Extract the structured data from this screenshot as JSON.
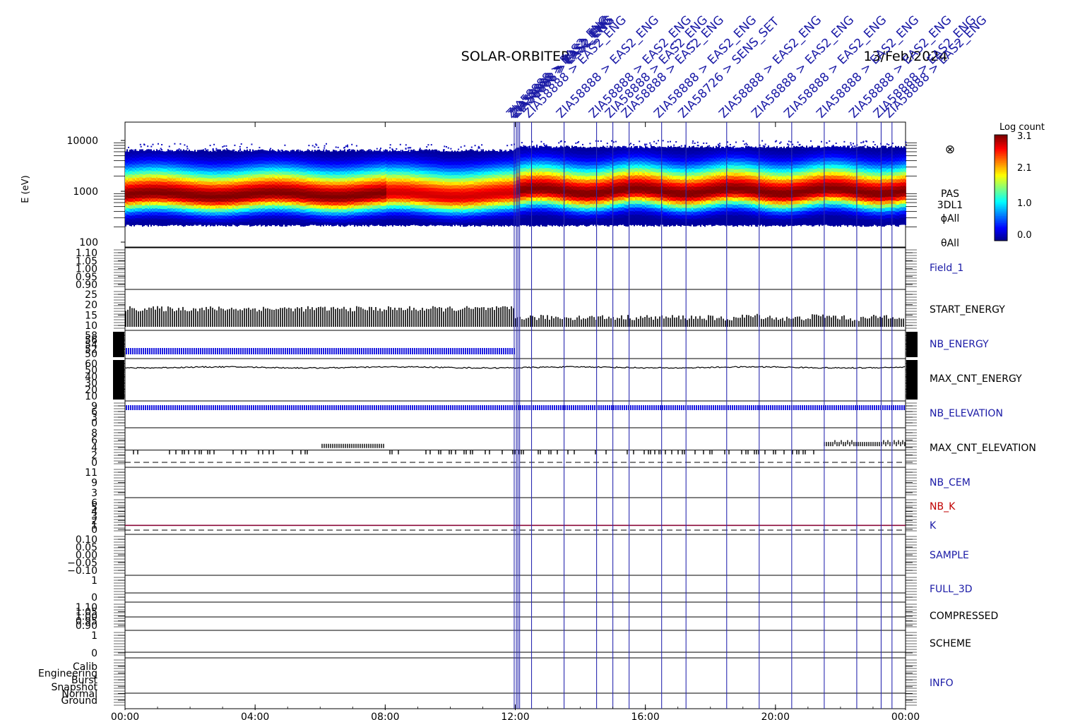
{
  "title": "SOLAR-ORBITER",
  "date": "13/Feb/2024",
  "spectrogram": {
    "ylabel": "E (eV)",
    "yticks": [
      "10000",
      "1000",
      "100"
    ],
    "colorbar": {
      "title": "Log count",
      "ticks": [
        "3.1",
        "2.1",
        "1.0",
        "0.0"
      ],
      "min": 0.0,
      "max": 3.1
    },
    "side_labels": [
      "PAS",
      "3DL1",
      "ϕAll",
      "θAll"
    ],
    "symbol": "⊗"
  },
  "colors": {
    "axis": "#000000",
    "marker": "#2a2ab0",
    "label_blue": "#1a1aa6",
    "label_red": "#c00000",
    "trace_blue": "#1c1ce0"
  },
  "chart_data": {
    "type": "multi-panel time series",
    "x_range": [
      "00:00",
      "24:00"
    ],
    "x_ticks": [
      "00:00",
      "04:00",
      "08:00",
      "12:00",
      "16:00",
      "20:00",
      "00:00"
    ],
    "panels": [
      {
        "name": "Field_1",
        "color": "blue",
        "ticks": [
          "1.10",
          "1.05",
          "1.00",
          "0.95",
          "0.90"
        ],
        "ylim": [
          0.9,
          1.1
        ]
      },
      {
        "name": "START_ENERGY",
        "color": "black",
        "ticks": [
          "25",
          "20",
          "15",
          "10"
        ],
        "ylim": [
          10,
          25
        ],
        "values_before_1200": 18,
        "values_after_1200": 14
      },
      {
        "name": "NB_ENERGY",
        "color": "blue",
        "ticks": [
          "58",
          "56",
          "54",
          "52",
          "50"
        ],
        "ylim": [
          50,
          58
        ]
      },
      {
        "name": "MAX_CNT_ENERGY",
        "color": "black",
        "ticks": [
          "60",
          "50",
          "40",
          "30",
          "20",
          "10"
        ],
        "ylim": [
          10,
          60
        ],
        "typical": 54
      },
      {
        "name": "NB_ELEVATION",
        "color": "blue",
        "ticks": [
          "9",
          "6",
          "3",
          "0"
        ],
        "ylim": [
          0,
          9
        ],
        "typical": 9
      },
      {
        "name": "MAX_CNT_ELEVATION",
        "color": "black",
        "ticks": [
          "8",
          "6",
          "4",
          "2",
          "0"
        ],
        "ylim": [
          0,
          8
        ]
      },
      {
        "name": "NB_CEM",
        "color": "blue",
        "ticks": [
          "11",
          "9",
          "3"
        ],
        "ylim": [
          3,
          11
        ]
      },
      {
        "name": "NB_K",
        "color": "red",
        "second_label": "K",
        "ticks": [
          "6",
          "5",
          "4",
          "3",
          "2",
          "1",
          "0"
        ],
        "ylim": [
          0,
          6
        ],
        "typical": 1
      },
      {
        "name": "SAMPLE",
        "color": "blue",
        "ticks": [
          "0.10",
          "0.05",
          "0.00",
          "−0.05",
          "−0.10"
        ],
        "ylim": [
          -0.1,
          0.1
        ]
      },
      {
        "name": "FULL_3D",
        "color": "blue",
        "ticks": [
          "1",
          "0"
        ],
        "ylim": [
          0,
          1
        ]
      },
      {
        "name": "COMPRESSED",
        "color": "black",
        "ticks": [
          "1.10",
          "1.05",
          "1.00",
          "0.95",
          "0.90"
        ],
        "ylim": [
          0.9,
          1.1
        ]
      },
      {
        "name": "SCHEME",
        "color": "black",
        "ticks": [
          "1",
          "0"
        ],
        "ylim": [
          0,
          1
        ]
      },
      {
        "name": "INFO",
        "color": "blue",
        "ticks": [
          "Calib",
          "Engineering",
          "Burst",
          "Snapshot",
          "Normal",
          "Ground"
        ]
      }
    ],
    "event_markers": [
      {
        "time": "11:58",
        "label": "ZIA58888 > EAS2_ENG"
      },
      {
        "time": "12:02",
        "label": "ZIA58888 > EAS2_ENG"
      },
      {
        "time": "12:05",
        "label": "ZIA58888 > EAS2_ENG"
      },
      {
        "time": "12:08",
        "label": "ZIA58888 > EAS2_ENG"
      },
      {
        "time": "12:30",
        "label": "ZIA58888 > EAS2_ENG"
      },
      {
        "time": "13:30",
        "label": "ZIA58888 > EAS2_ENG"
      },
      {
        "time": "14:30",
        "label": "ZIA58888 > EAS2_ENG"
      },
      {
        "time": "15:00",
        "label": "ZIA58888 > EAS2_ENG"
      },
      {
        "time": "15:30",
        "label": "ZIA58888 > EAS2_ENG"
      },
      {
        "time": "16:30",
        "label": "ZIA58888 > EAS2_ENG"
      },
      {
        "time": "17:15",
        "label": "ZIA58726 > SENS_SET"
      },
      {
        "time": "18:30",
        "label": "ZIA58888 > EAS2_ENG"
      },
      {
        "time": "19:30",
        "label": "ZIA58888 > EAS2_ENG"
      },
      {
        "time": "20:30",
        "label": "ZIA58888 > EAS2_ENG"
      },
      {
        "time": "21:30",
        "label": "ZIA58888 > EAS2_ENG"
      },
      {
        "time": "22:30",
        "label": "ZIA58888 > EAS2_ENG"
      },
      {
        "time": "23:15",
        "label": "ZIA58888 > EAS2_ENG"
      },
      {
        "time": "23:35",
        "label": "ZIA58888 > EAS2_ENG"
      }
    ]
  }
}
